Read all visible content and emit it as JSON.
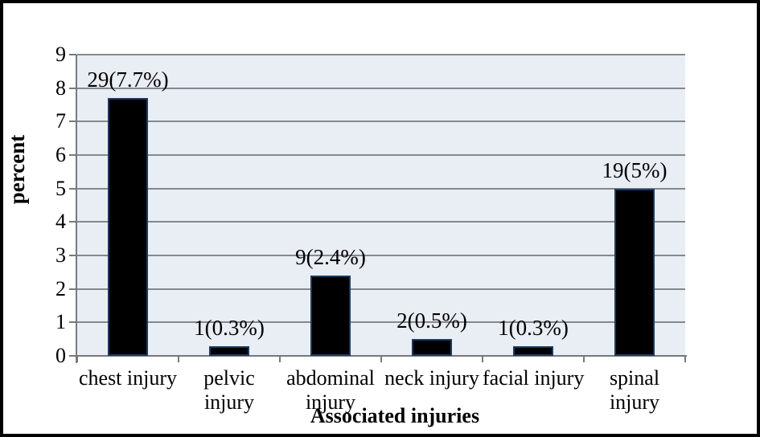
{
  "chart_data": {
    "type": "bar",
    "title": "",
    "xlabel": "Associated injuries",
    "ylabel": "percent",
    "categories": [
      "chest injury",
      "pelvic injury",
      "abdominal injury",
      "neck injury",
      "facial injury",
      "spinal injury"
    ],
    "category_label_lines": [
      [
        "chest injury"
      ],
      [
        "pelvic",
        "injury"
      ],
      [
        "abdominal",
        "injury"
      ],
      [
        "neck injury"
      ],
      [
        "facial injury"
      ],
      [
        "spinal",
        "injury"
      ]
    ],
    "counts": [
      29,
      1,
      9,
      2,
      1,
      19
    ],
    "values": [
      7.7,
      0.3,
      2.4,
      0.5,
      0.3,
      5.0
    ],
    "data_labels": [
      "29(7.7%)",
      "1(0.3%)",
      "9(2.4%)",
      "2(0.5%)",
      "1(0.3%)",
      "19(5%)"
    ],
    "ylim": [
      0,
      9
    ],
    "ytick_interval": 1,
    "yticks": [
      "0",
      "1",
      "2",
      "3",
      "4",
      "5",
      "6",
      "7",
      "8",
      "9"
    ],
    "grid": "horizontal",
    "legend": "none",
    "colors": {
      "bar_fill": "#000000",
      "bar_border": "#1E3A5F",
      "plot_bg": "#E9EDF4",
      "gridline": "#85888D",
      "axis": "#76797D",
      "text": "#000000",
      "figure_bg": "#FFFFFF",
      "figure_border": "#000000"
    }
  }
}
